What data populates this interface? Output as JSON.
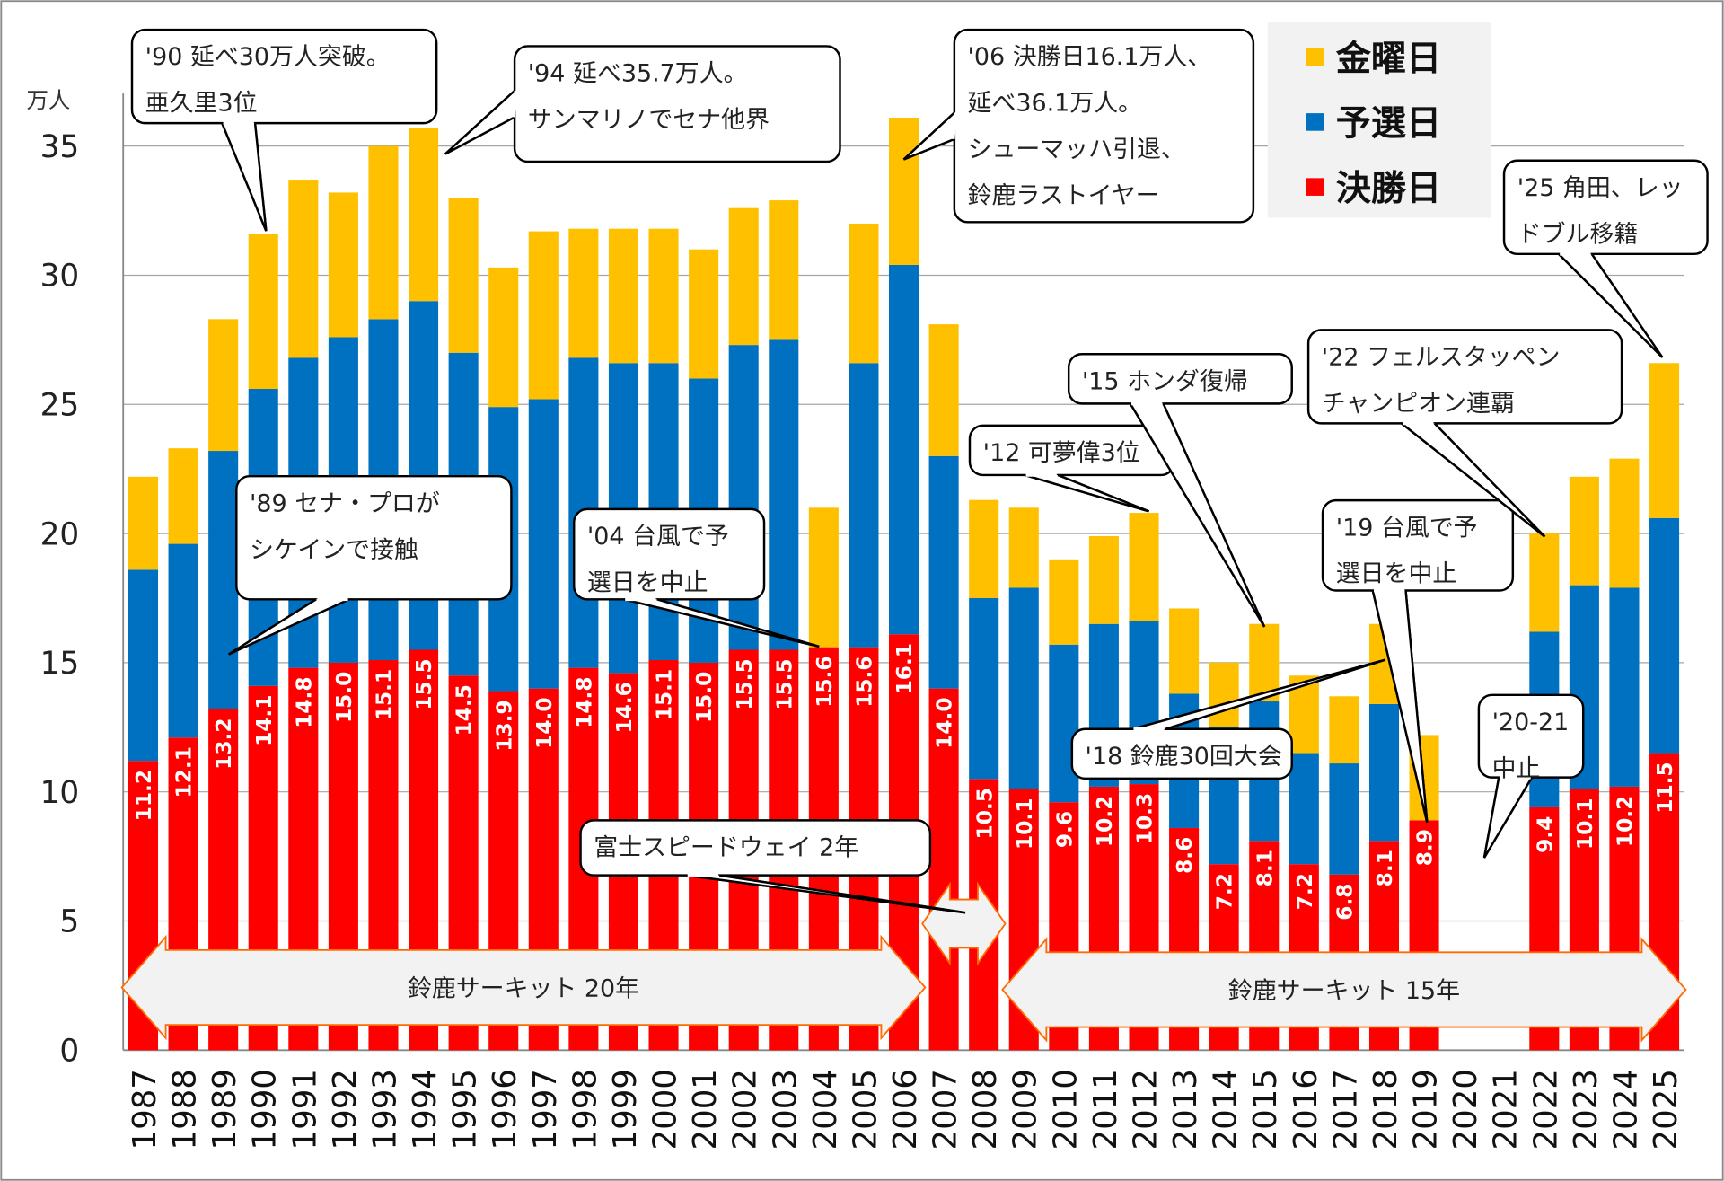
{
  "chart_data": {
    "type": "bar",
    "stacked": true,
    "ylabel": "万人",
    "ylim": [
      0,
      37
    ],
    "yticks": [
      0,
      5,
      10,
      15,
      20,
      25,
      30,
      35
    ],
    "grid": true,
    "legend_placement": "top-right",
    "categories": [
      "1987",
      "1988",
      "1989",
      "1990",
      "1991",
      "1992",
      "1993",
      "1994",
      "1995",
      "1996",
      "1997",
      "1998",
      "1999",
      "2000",
      "2001",
      "2002",
      "2003",
      "2004",
      "2005",
      "2006",
      "2007",
      "2008",
      "2009",
      "2010",
      "2011",
      "2012",
      "2013",
      "2014",
      "2015",
      "2016",
      "2017",
      "2018",
      "2019",
      "2020",
      "2021",
      "2022",
      "2023",
      "2024",
      "2025"
    ],
    "series": [
      {
        "name": "決勝日",
        "color": "#ff0000",
        "values": [
          11.2,
          12.1,
          13.2,
          14.1,
          14.8,
          15.0,
          15.1,
          15.5,
          14.5,
          13.9,
          14.0,
          14.8,
          14.6,
          15.1,
          15.0,
          15.5,
          15.5,
          15.6,
          15.6,
          16.1,
          14.0,
          10.5,
          10.1,
          9.6,
          10.2,
          10.3,
          8.6,
          7.2,
          8.1,
          7.2,
          6.8,
          8.1,
          8.9,
          null,
          null,
          9.4,
          10.1,
          10.2,
          11.5
        ]
      },
      {
        "name": "予選日",
        "color": "#0070c0",
        "values": [
          7.4,
          7.5,
          10.0,
          11.5,
          12.0,
          12.6,
          13.2,
          13.5,
          12.5,
          11.0,
          11.2,
          12.0,
          12.0,
          11.5,
          11.0,
          11.8,
          12.0,
          0,
          11.0,
          14.3,
          9.0,
          7.0,
          7.8,
          6.1,
          6.3,
          6.3,
          5.2,
          5.3,
          5.4,
          4.3,
          4.3,
          5.3,
          0,
          null,
          null,
          6.8,
          7.9,
          7.7,
          9.1
        ]
      },
      {
        "name": "金曜日",
        "color": "#ffc000",
        "values": [
          3.6,
          3.7,
          5.1,
          6.0,
          6.9,
          5.6,
          6.7,
          6.7,
          6.0,
          5.4,
          6.5,
          5.0,
          5.2,
          5.2,
          5.0,
          5.3,
          5.4,
          5.4,
          5.4,
          5.7,
          5.1,
          3.8,
          3.1,
          3.3,
          3.4,
          4.2,
          3.3,
          2.5,
          3.0,
          3.0,
          2.6,
          3.1,
          3.3,
          null,
          null,
          3.8,
          4.2,
          5.0,
          6.0
        ]
      }
    ],
    "annotations": [
      {
        "year": "1990",
        "text": [
          "'90 延べ30万人突破。",
          "亜久里3位"
        ]
      },
      {
        "year": "1994",
        "text": [
          "'94 延べ35.7万人。",
          "サンマリノでセナ他界"
        ]
      },
      {
        "year": "2006",
        "text": [
          "'06 決勝日16.1万人、",
          "延べ36.1万人。",
          "シューマッハ引退、",
          "鈴鹿ラストイヤー"
        ]
      },
      {
        "year": "1989",
        "text": [
          "'89 セナ・プロが",
          "シケインで接触"
        ]
      },
      {
        "year": "2004",
        "text": [
          "'04 台風で予",
          "選日を中止"
        ]
      },
      {
        "year": "2012",
        "text": [
          "'12 可夢偉3位"
        ]
      },
      {
        "year": "2015",
        "text": [
          "'15 ホンダ復帰"
        ]
      },
      {
        "year": "2018",
        "text": [
          "'18 鈴鹿30回大会"
        ]
      },
      {
        "year": "2019",
        "text": [
          "'19 台風で予",
          "選日を中止"
        ]
      },
      {
        "year": "2022",
        "text": [
          "'22 フェルスタッペン",
          "チャンピオン連覇"
        ]
      },
      {
        "year": "2025",
        "text": [
          "'25 角田、レッ",
          "ドブル移籍"
        ]
      },
      {
        "year": "2020",
        "text": [
          "'20-21",
          "中止"
        ]
      },
      {
        "year": "2007",
        "text": [
          "富士スピードウェイ 2年"
        ]
      }
    ],
    "spans": [
      {
        "label": "鈴鹿サーキット 20年",
        "from": "1987",
        "to": "2006"
      },
      {
        "label": "",
        "from": "2007",
        "to": "2008"
      },
      {
        "label": "鈴鹿サーキット 15年",
        "from": "2009",
        "to": "2025"
      }
    ]
  }
}
